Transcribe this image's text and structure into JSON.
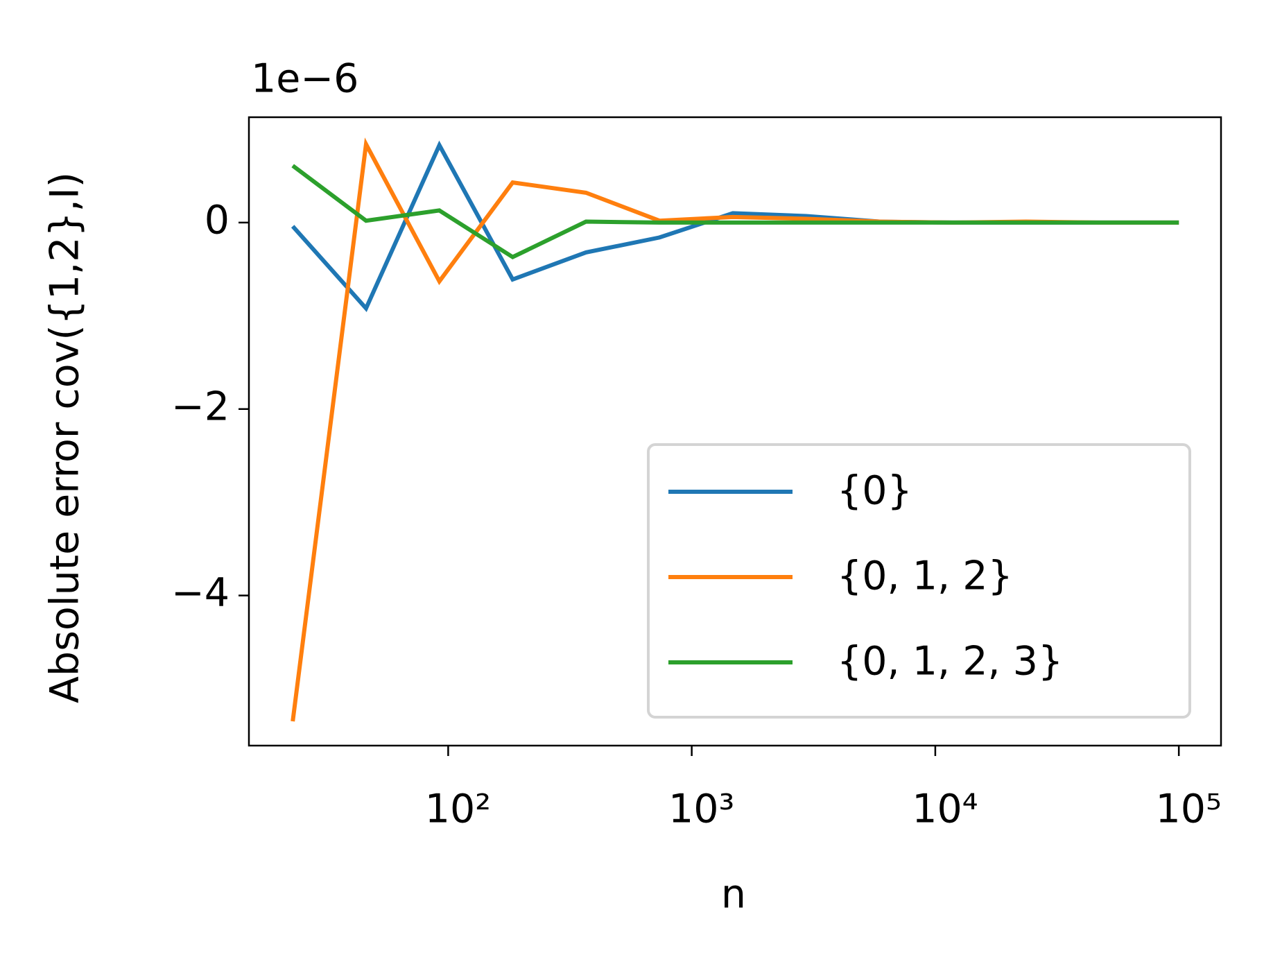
{
  "chart_data": {
    "type": "line",
    "title": "",
    "offset_text": "1e−6",
    "xlabel": "n",
    "ylabel": "Absolute error cov({1,2},I)",
    "x": [
      23,
      46,
      92,
      184,
      368,
      737,
      1475,
      2950,
      5900,
      11800,
      23600,
      47200,
      100000
    ],
    "xscale": "log",
    "xlim": [
      15.2,
      149000
    ],
    "xticks": [
      {
        "value": 100,
        "label": "10²"
      },
      {
        "value": 1000,
        "label": "10³"
      },
      {
        "value": 10000,
        "label": "10⁴"
      },
      {
        "value": 100000,
        "label": "10⁵"
      }
    ],
    "ylim": [
      -5.61,
      1.13
    ],
    "yticks": [
      {
        "value": -4,
        "label": "−4"
      },
      {
        "value": -2,
        "label": "−2"
      },
      0
    ],
    "grid": false,
    "legend": "lower right",
    "series": [
      {
        "name": "{0}",
        "color": "#1f77b4",
        "values": [
          -0.04,
          -0.92,
          0.83,
          -0.61,
          -0.32,
          -0.16,
          0.1,
          0.07,
          0.01,
          0,
          0,
          0,
          0
        ]
      },
      {
        "name": "{0, 1, 2}",
        "color": "#ff7f0e",
        "values": [
          -5.35,
          0.84,
          -0.63,
          0.43,
          0.32,
          0.02,
          0.06,
          0.04,
          0.01,
          0,
          0.01,
          0,
          0
        ]
      },
      {
        "name": "{0, 1, 2, 3}",
        "color": "#2ca02c",
        "values": [
          0.61,
          0.02,
          0.13,
          -0.37,
          0.01,
          0,
          0,
          0,
          0,
          0,
          0,
          0,
          0
        ]
      }
    ]
  }
}
